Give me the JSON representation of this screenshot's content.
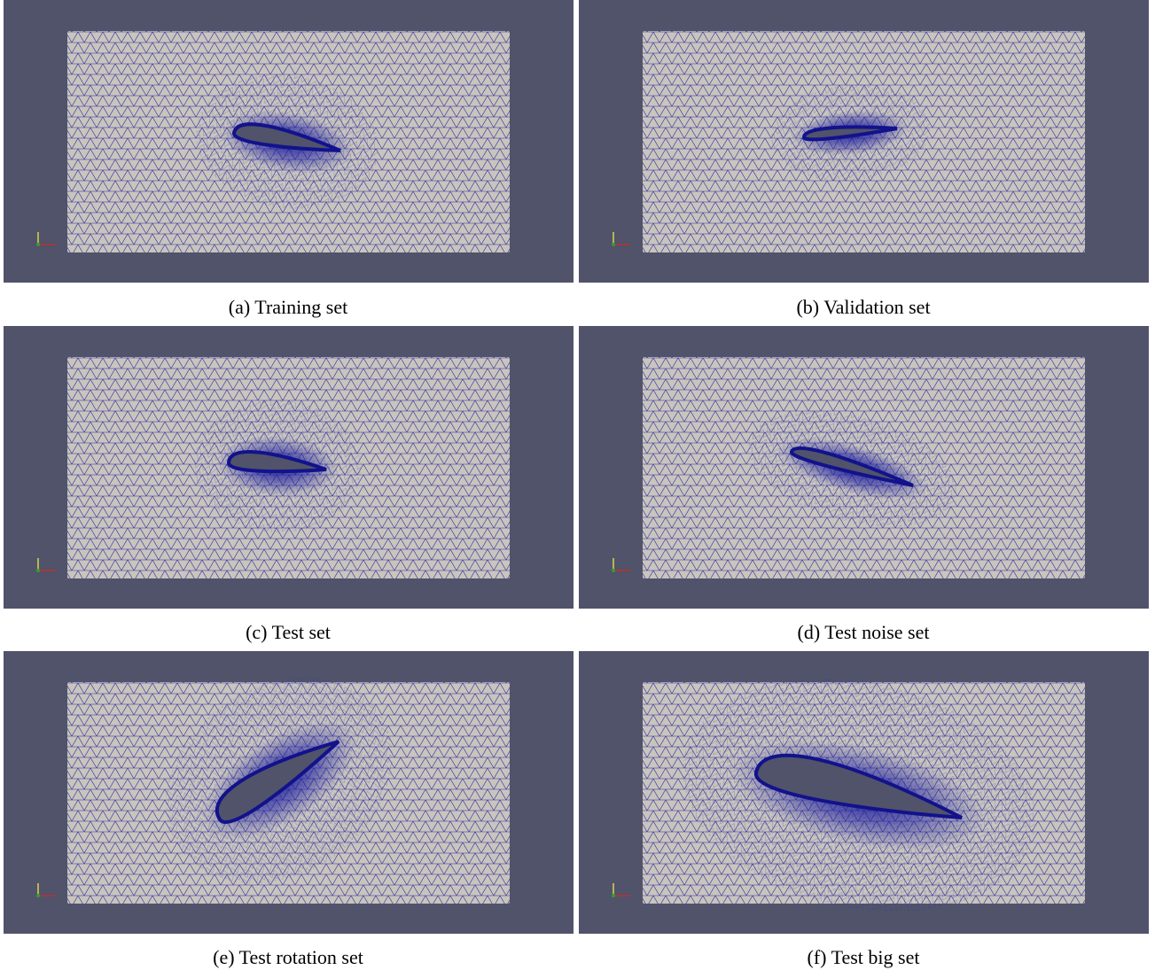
{
  "figure": {
    "panels": [
      {
        "caption": "(a) Training set"
      },
      {
        "caption": "(b) Validation set"
      },
      {
        "caption": "(c) Test set"
      },
      {
        "caption": "(d) Test noise set"
      },
      {
        "caption": "(e) Test rotation set"
      },
      {
        "caption": "(f) Test big set"
      }
    ]
  }
}
